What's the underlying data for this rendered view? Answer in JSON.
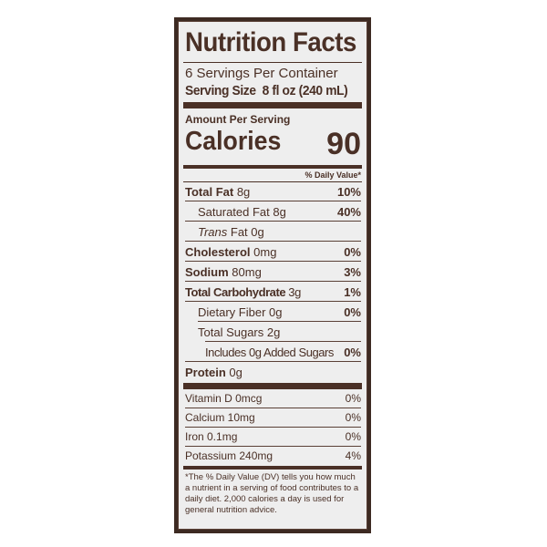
{
  "title": "Nutrition Facts",
  "servings": "6 Servings Per Container",
  "serving_size_label": "Serving Size",
  "serving_size_value": "8 fl oz (240 mL)",
  "amount_per_serving": "Amount Per Serving",
  "calories_label": "Calories",
  "calories_value": "90",
  "dv_header": "% Daily Value*",
  "nutrients": [
    {
      "name": "Total Fat",
      "amount": "8g",
      "dv": "10%"
    },
    {
      "name": "Saturated Fat 8g",
      "amount": "",
      "dv": "40%"
    },
    {
      "name": "Trans",
      "amount": "Fat 0g",
      "dv": ""
    },
    {
      "name": "Cholesterol",
      "amount": "0mg",
      "dv": "0%"
    },
    {
      "name": "Sodium",
      "amount": "80mg",
      "dv": "3%"
    },
    {
      "name": "Total Carbohydrate",
      "amount": "3g",
      "dv": "1%"
    },
    {
      "name": "Dietary Fiber 0g",
      "amount": "",
      "dv": "0%"
    },
    {
      "name": "Total Sugars 2g",
      "amount": "",
      "dv": ""
    },
    {
      "name": "Includes 0g Added Sugars",
      "amount": "",
      "dv": "0%"
    },
    {
      "name": "Protein",
      "amount": "0g",
      "dv": ""
    }
  ],
  "vitamins": [
    {
      "name": "Vitamin D 0mcg",
      "dv": "0%"
    },
    {
      "name": "Calcium 10mg",
      "dv": "0%"
    },
    {
      "name": "Iron 0.1mg",
      "dv": "0%"
    },
    {
      "name": "Potassium 240mg",
      "dv": "4%"
    }
  ],
  "footnote": "*The % Daily Value (DV) tells you how much a nutrient in a serving of food contributes to a daily diet. 2,000 calories a day is used for general nutrition advice."
}
